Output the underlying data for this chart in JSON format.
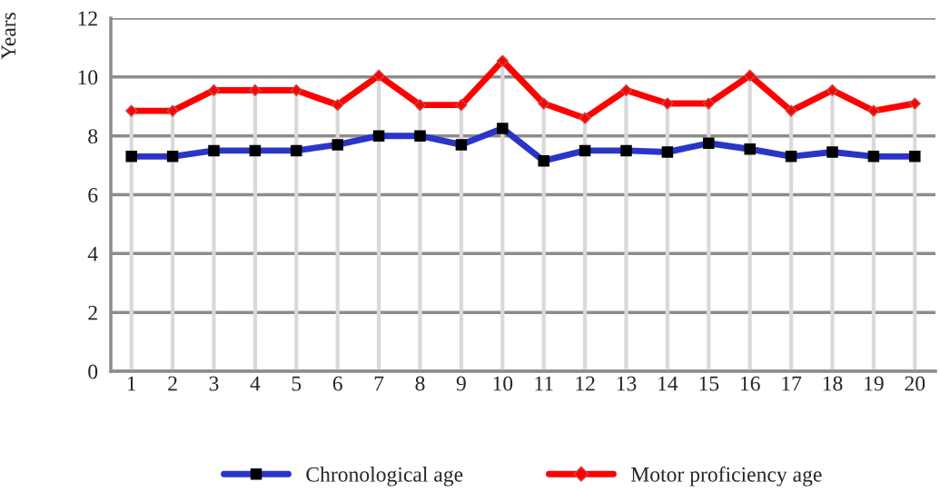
{
  "chart_data": {
    "type": "line",
    "ylabel": "Years",
    "categories": [
      "1",
      "2",
      "3",
      "4",
      "5",
      "6",
      "7",
      "8",
      "9",
      "10",
      "11",
      "12",
      "13",
      "14",
      "15",
      "16",
      "17",
      "18",
      "19",
      "20"
    ],
    "series": [
      {
        "name": "Chronological age",
        "color": "#2a35c8",
        "marker": "square",
        "values": [
          7.3,
          7.3,
          7.5,
          7.5,
          7.5,
          7.7,
          8.0,
          8.0,
          7.7,
          8.25,
          7.15,
          7.5,
          7.5,
          7.45,
          7.75,
          7.55,
          7.3,
          7.45,
          7.3,
          7.3
        ]
      },
      {
        "name": "Motor proficiency age",
        "color": "#ff0000",
        "marker": "diamond",
        "values": [
          8.85,
          8.85,
          9.55,
          9.55,
          9.55,
          9.05,
          10.05,
          9.05,
          9.05,
          10.55,
          9.1,
          8.6,
          9.55,
          9.1,
          9.1,
          10.05,
          8.85,
          9.55,
          8.85,
          9.1
        ]
      }
    ],
    "ylim": [
      0,
      12
    ],
    "yticks": [
      0,
      2,
      4,
      6,
      8,
      10,
      12
    ],
    "grid": true,
    "legend": "bottom",
    "line_style": "solid"
  }
}
